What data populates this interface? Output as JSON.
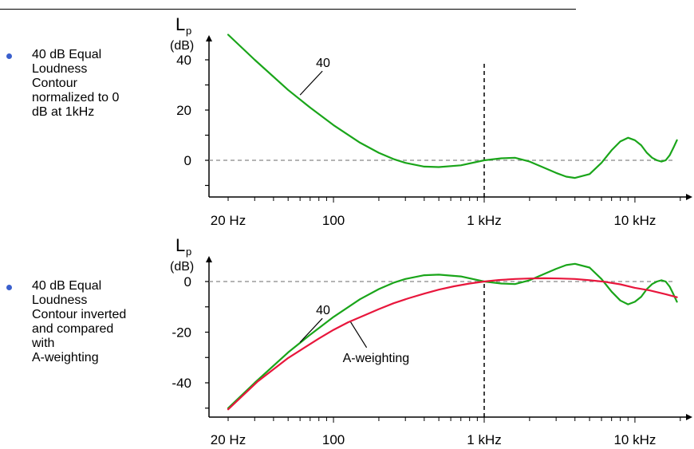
{
  "bullets": [
    "40 dB Equal\nLoudness\nContour\nnormalized to 0\ndB at 1kHz",
    "40 dB Equal\nLoudness\nContour inverted\nand compared\nwith\nA-weighting"
  ],
  "colors": {
    "contour": "#1aa51a",
    "a_weighting": "#e8163c",
    "bullet": "#3a5fcd",
    "axis": "#000000",
    "reference": "#888888"
  },
  "chart_data": [
    {
      "type": "line",
      "title": "",
      "ylabel": "L",
      "ylabel_sub": "p",
      "yunit": "(dB)",
      "xscale": "log",
      "xlim": [
        17,
        20000
      ],
      "ylim": [
        -12,
        50
      ],
      "yticks": [
        40,
        20,
        0
      ],
      "xtick_labels": [
        {
          "x": 20,
          "label": "20 Hz"
        },
        {
          "x": 100,
          "label": "100"
        },
        {
          "x": 1000,
          "label": "1 kHz"
        },
        {
          "x": 10000,
          "label": "10 kHz"
        }
      ],
      "reference_line": 0,
      "vline": 1000,
      "annotations": [
        {
          "text": "40",
          "x": 60,
          "y": 26
        }
      ],
      "series": [
        {
          "name": "40",
          "x": [
            20,
            30,
            50,
            70,
            100,
            150,
            200,
            250,
            300,
            400,
            500,
            700,
            1000,
            1300,
            1600,
            2000,
            2500,
            3000,
            3500,
            4000,
            5000,
            6000,
            7000,
            8000,
            9000,
            10000,
            11000,
            12000,
            13000,
            14000,
            15000,
            16000,
            17000,
            18000,
            19000
          ],
          "y": [
            50,
            40,
            28,
            21,
            14,
            7,
            3,
            0.5,
            -1,
            -2.5,
            -2.7,
            -2,
            0,
            0.8,
            1,
            -0.5,
            -3,
            -5,
            -6.5,
            -7,
            -5.5,
            -1,
            4,
            7.5,
            9,
            8,
            6,
            3,
            1,
            0,
            -0.5,
            0,
            2,
            5,
            8
          ]
        }
      ]
    },
    {
      "type": "line",
      "title": "",
      "ylabel": "L",
      "ylabel_sub": "p",
      "yunit": "(dB)",
      "xscale": "log",
      "xlim": [
        17,
        20000
      ],
      "ylim": [
        -52,
        9
      ],
      "yticks": [
        0,
        -20,
        -40
      ],
      "xtick_labels": [
        {
          "x": 20,
          "label": "20 Hz"
        },
        {
          "x": 100,
          "label": "100"
        },
        {
          "x": 1000,
          "label": "1 kHz"
        },
        {
          "x": 10000,
          "label": "10 kHz"
        }
      ],
      "reference_line": 0,
      "vline": 1000,
      "annotations": [
        {
          "text": "40",
          "x": 60,
          "y": -24
        },
        {
          "text": "A-weighting",
          "x": 130,
          "y": -16
        }
      ],
      "series": [
        {
          "name": "40",
          "x": [
            20,
            30,
            50,
            70,
            100,
            150,
            200,
            250,
            300,
            400,
            500,
            700,
            1000,
            1300,
            1600,
            2000,
            2500,
            3000,
            3500,
            4000,
            5000,
            6000,
            7000,
            8000,
            9000,
            10000,
            11000,
            12000,
            13000,
            14000,
            15000,
            16000,
            17000,
            18000,
            19000
          ],
          "y": [
            -50,
            -40,
            -28,
            -21,
            -14,
            -7,
            -3,
            -0.5,
            1,
            2.5,
            2.7,
            2,
            0,
            -0.8,
            -1,
            0.5,
            3,
            5,
            6.5,
            7,
            5.5,
            1,
            -4,
            -7.5,
            -9,
            -8,
            -6,
            -3,
            -1,
            0,
            0.5,
            0,
            -2,
            -5,
            -8
          ]
        },
        {
          "name": "A-weighting",
          "x": [
            20,
            31.5,
            50,
            80,
            100,
            125,
            160,
            200,
            250,
            315,
            400,
            500,
            630,
            800,
            1000,
            1250,
            1600,
            2000,
            2500,
            3150,
            4000,
            5000,
            6300,
            8000,
            10000,
            12500,
            16000,
            19000
          ],
          "y": [
            -50.5,
            -39.4,
            -30.2,
            -22.5,
            -19.1,
            -16.1,
            -13.4,
            -10.9,
            -8.6,
            -6.6,
            -4.8,
            -3.2,
            -1.9,
            -0.8,
            0,
            0.6,
            1.0,
            1.2,
            1.3,
            1.2,
            1.0,
            0.5,
            -0.1,
            -1.1,
            -2.5,
            -3.5,
            -5.0,
            -6.2
          ]
        }
      ]
    }
  ]
}
